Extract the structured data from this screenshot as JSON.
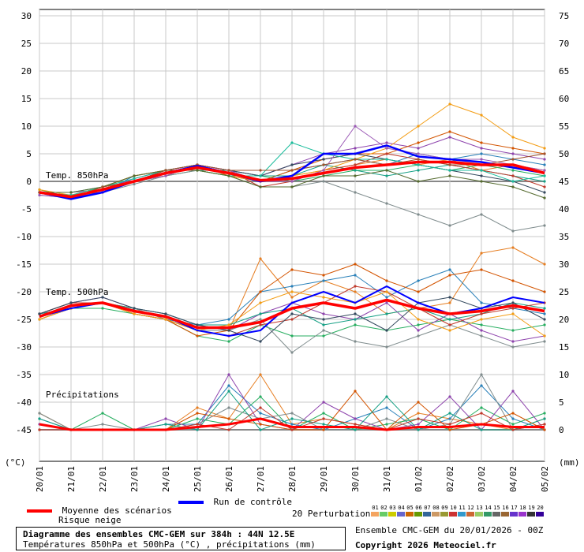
{
  "chart_data": {
    "type": "line",
    "title": "Diagramme des ensembles CMC-GEM sur 384h : 44N 12.5E",
    "subtitle": "Températures 850hPa et 500hPa (°C) , précipitations (mm)",
    "left_axis": {
      "label": "(°C)",
      "ticks": [
        30,
        25,
        20,
        15,
        10,
        5,
        0,
        -5,
        -10,
        -15,
        -20,
        -25,
        -30,
        -35,
        -40,
        -45
      ],
      "range": [
        -45,
        30
      ]
    },
    "right_axis": {
      "label": "(mm)",
      "ticks": [
        75,
        70,
        65,
        60,
        55,
        50,
        45,
        40,
        35,
        30,
        25,
        20,
        15,
        10,
        5,
        0
      ],
      "range": [
        0,
        75
      ]
    },
    "x_labels": [
      "20/01",
      "21/01",
      "22/01",
      "23/01",
      "24/01",
      "25/01",
      "26/01",
      "27/01",
      "28/01",
      "29/01",
      "30/01",
      "31/01",
      "01/02",
      "02/02",
      "03/02",
      "04/02",
      "05/02"
    ],
    "grid": true,
    "annotations": [
      "Temp. 850hPa",
      "Temp. 500hPa",
      "Précipitations"
    ],
    "t850_mean": [
      -2,
      -2.8,
      -1.5,
      0,
      1.5,
      2.5,
      1.5,
      0.2,
      0.5,
      1.5,
      2.5,
      3,
      3.5,
      3.5,
      3,
      3,
      1.5
    ],
    "t850_control": [
      -2,
      -3.2,
      -2,
      0,
      1.5,
      2.8,
      1.5,
      0,
      1,
      5,
      5,
      6.5,
      4.5,
      4,
      3.5,
      2.5,
      1.5
    ],
    "t850_members": [
      [
        -2,
        -3,
        -1,
        0,
        2,
        2,
        1,
        0,
        1,
        2,
        3,
        4,
        3,
        4,
        2,
        3,
        2
      ],
      [
        -2,
        -2.5,
        -2,
        1,
        2,
        3,
        2,
        0,
        2,
        3,
        4,
        3,
        5,
        4,
        5,
        4,
        3
      ],
      [
        -1.5,
        -3,
        -1,
        0,
        1,
        2,
        1,
        1,
        0,
        1,
        2,
        2,
        3,
        2,
        3,
        2,
        1
      ],
      [
        -2,
        -2,
        -1.5,
        0.5,
        2,
        3,
        2,
        1,
        3,
        5,
        6,
        7,
        6,
        8,
        6,
        5,
        4
      ],
      [
        -2.5,
        -3,
        -2,
        -0.5,
        1,
        2,
        1,
        -1,
        -1,
        0,
        -2,
        -4,
        -6,
        -8,
        -6,
        -9,
        -8
      ],
      [
        -2,
        -3,
        -1,
        1,
        2,
        3,
        1,
        0,
        2,
        4,
        5,
        5,
        7,
        9,
        7,
        6,
        5
      ],
      [
        -2,
        -2,
        -1,
        0,
        2,
        2,
        2,
        1,
        1,
        3,
        2,
        1,
        2,
        3,
        2,
        1,
        0
      ],
      [
        -2,
        -3,
        -2,
        0,
        1,
        3,
        2,
        -1,
        0,
        2,
        3,
        5,
        4,
        3,
        2,
        1,
        -1
      ],
      [
        -1.5,
        -2.5,
        -1,
        1,
        2,
        2,
        1,
        0,
        1,
        2,
        4,
        6,
        10,
        14,
        12,
        8,
        6
      ],
      [
        -2,
        -3,
        -1.5,
        0,
        2,
        3,
        2,
        1,
        3,
        4,
        5,
        4,
        3,
        2,
        1,
        0,
        -2
      ],
      [
        -2,
        -2.5,
        -1,
        0.5,
        2,
        2,
        1,
        1,
        7,
        5,
        4,
        4,
        3,
        2,
        2,
        0,
        1
      ],
      [
        -2.5,
        -3,
        -2,
        0,
        1,
        3,
        2,
        0,
        0,
        2,
        10,
        6,
        5,
        4,
        4,
        3,
        2
      ],
      [
        -2,
        -2,
        -1,
        1,
        2,
        2,
        1,
        -1,
        -1,
        1,
        1,
        2,
        0,
        1,
        0,
        -1,
        -3
      ],
      [
        -2,
        -3,
        -1,
        0,
        2,
        3,
        2,
        2,
        2,
        3,
        4,
        3,
        4,
        3,
        3,
        4,
        5
      ]
    ],
    "t500_mean": [
      -24.5,
      -22.5,
      -22,
      -23.5,
      -24.5,
      -26.5,
      -26.5,
      -25.5,
      -23,
      -22,
      -23,
      -21.5,
      -23,
      -24,
      -23.5,
      -22.5,
      -23.5
    ],
    "t500_control": [
      -24.5,
      -23,
      -22,
      -23.5,
      -24.5,
      -27,
      -28,
      -27,
      -22,
      -20,
      -22,
      -19,
      -22,
      -24,
      -23,
      -21,
      -22
    ],
    "t500_members": [
      [
        -24,
        -22,
        -22,
        -23,
        -25,
        -27,
        -27,
        -14,
        -21,
        -18,
        -20,
        -24,
        -23,
        -22,
        -13,
        -12,
        -15
      ],
      [
        -24,
        -23,
        -22,
        -24,
        -25,
        -26,
        -25,
        -20,
        -19,
        -18,
        -17,
        -21,
        -18,
        -16,
        -22,
        -23,
        -24
      ],
      [
        -25,
        -23,
        -23,
        -24,
        -25,
        -28,
        -29,
        -26,
        -28,
        -28,
        -26,
        -27,
        -26,
        -25,
        -26,
        -27,
        -26
      ],
      [
        -24,
        -22,
        -21,
        -23,
        -24,
        -26,
        -27,
        -24,
        -22,
        -24,
        -25,
        -22,
        -27,
        -24,
        -27,
        -29,
        -28
      ],
      [
        -24,
        -22,
        -22,
        -23,
        -25,
        -27,
        -27,
        -25,
        -31,
        -27,
        -29,
        -30,
        -28,
        -26,
        -28,
        -30,
        -29
      ],
      [
        -25,
        -23,
        -22,
        -24,
        -25,
        -28,
        -27,
        -20,
        -16,
        -17,
        -15,
        -18,
        -20,
        -17,
        -16,
        -18,
        -20
      ],
      [
        -24,
        -23,
        -22,
        -23,
        -24,
        -26,
        -26,
        -24,
        -23,
        -26,
        -25,
        -24,
        -23,
        -25,
        -24,
        -22,
        -23
      ],
      [
        -24,
        -22,
        -22,
        -24,
        -25,
        -27,
        -28,
        -26,
        -25,
        -22,
        -19,
        -20,
        -23,
        -26,
        -24,
        -23,
        -22
      ],
      [
        -25,
        -23,
        -22,
        -24,
        -25,
        -27,
        -26,
        -22,
        -20,
        -21,
        -22,
        -20,
        -25,
        -27,
        -25,
        -24,
        -28
      ],
      [
        -24,
        -22,
        -21,
        -23,
        -24,
        -26,
        -27,
        -29,
        -24,
        -25,
        -24,
        -27,
        -22,
        -21,
        -23,
        -22,
        -25
      ]
    ],
    "precip_mean": [
      1,
      0,
      0,
      0,
      0,
      0.5,
      1,
      2,
      0.5,
      0.5,
      0.5,
      0,
      0.5,
      0.5,
      1,
      0.5,
      0.5
    ],
    "precip_members": [
      [
        3,
        0,
        0,
        0,
        0,
        4,
        2,
        10,
        1,
        2,
        1,
        0,
        3,
        2,
        1,
        0,
        2
      ],
      [
        2,
        0,
        0,
        0,
        1,
        1,
        8,
        3,
        1,
        0,
        2,
        4,
        0,
        2,
        8,
        2,
        0
      ],
      [
        0,
        0,
        3,
        0,
        0,
        2,
        1,
        6,
        0,
        3,
        0,
        1,
        2,
        0,
        4,
        1,
        3
      ],
      [
        1,
        0,
        0,
        0,
        2,
        0,
        10,
        1,
        0,
        5,
        2,
        0,
        1,
        6,
        0,
        7,
        0
      ],
      [
        3,
        0,
        1,
        0,
        0,
        1,
        4,
        2,
        3,
        0,
        0,
        2,
        0,
        1,
        10,
        0,
        1
      ],
      [
        0,
        0,
        0,
        0,
        0,
        3,
        2,
        1,
        0,
        0,
        7,
        0,
        5,
        0,
        1,
        3,
        0
      ],
      [
        2,
        0,
        0,
        0,
        1,
        0,
        7,
        0,
        2,
        1,
        0,
        6,
        0,
        3,
        0,
        0,
        2
      ],
      [
        0,
        0,
        0,
        0,
        0,
        1,
        0,
        4,
        0,
        2,
        1,
        0,
        2,
        1,
        3,
        0,
        1
      ]
    ],
    "member_colors": [
      "#e67e22",
      "#2980b9",
      "#27ae60",
      "#8e44ad",
      "#7f8c8d",
      "#d35400",
      "#16a085",
      "#c0392b",
      "#f39c12",
      "#34495e",
      "#1abc9c",
      "#9b59b6",
      "#556b2f",
      "#a0522d"
    ]
  },
  "legend": {
    "mean_label": "Moyenne des scénarios",
    "snow_label": "Risque neige",
    "control_label": "Run de contrôle",
    "perturbations_label": "20 Perturbations",
    "perturbation_numbers": [
      "01",
      "02",
      "03",
      "04",
      "05",
      "06",
      "07",
      "08",
      "09",
      "10",
      "11",
      "12",
      "13",
      "14",
      "15",
      "16",
      "17",
      "18",
      "19",
      "20"
    ],
    "perturbation_colors": [
      "#f4a460",
      "#66cc66",
      "#cccc00",
      "#6666cc",
      "#cc6600",
      "#669900",
      "#336699",
      "#cc9966",
      "#999933",
      "#cc3333",
      "#3399cc",
      "#cc6633",
      "#99cc66",
      "#339966",
      "#666666",
      "#996633",
      "#6633cc",
      "#9933cc",
      "#333333",
      "#330099"
    ],
    "mean_color": "#ff0000",
    "control_color": "#0000ff"
  },
  "footer": {
    "title": "Diagramme des ensembles CMC-GEM sur 384h : 44N 12.5E",
    "subtitle": "Températures 850hPa et 500hPa (°C) , précipitations (mm)",
    "run": "Ensemble CMC-GEM du 20/01/2026 - 00Z",
    "copyright": "Copyright 2026 Meteociel.fr"
  }
}
